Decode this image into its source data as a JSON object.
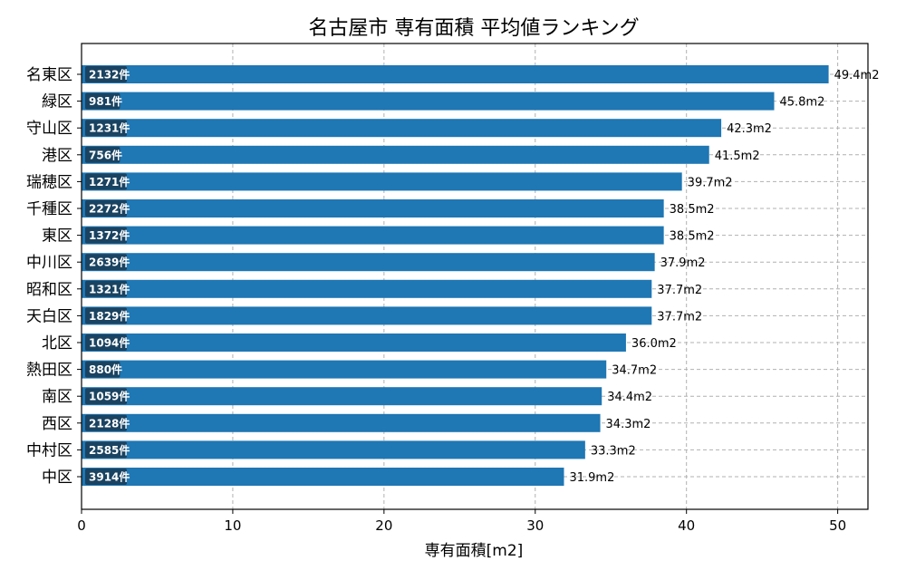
{
  "chart_data": {
    "type": "bar",
    "orientation": "horizontal",
    "title": "名古屋市 専有面積 平均値ランキング",
    "xlabel": "専有面積[m2]",
    "ylabel": "",
    "xlim": [
      0,
      52
    ],
    "xticks": [
      0,
      10,
      20,
      30,
      40,
      50
    ],
    "grid": true,
    "bar_color": "#1f77b4",
    "count_badge_color": "#1a3a52",
    "categories": [
      "名東区",
      "緑区",
      "守山区",
      "港区",
      "瑞穂区",
      "千種区",
      "東区",
      "中川区",
      "昭和区",
      "天白区",
      "北区",
      "熱田区",
      "南区",
      "西区",
      "中村区",
      "中区"
    ],
    "values": [
      49.4,
      45.8,
      42.3,
      41.5,
      39.7,
      38.5,
      38.5,
      37.9,
      37.7,
      37.7,
      36.0,
      34.7,
      34.4,
      34.3,
      33.3,
      31.9
    ],
    "value_labels": [
      "49.4m2",
      "45.8m2",
      "42.3m2",
      "41.5m2",
      "39.7m2",
      "38.5m2",
      "38.5m2",
      "37.9m2",
      "37.7m2",
      "37.7m2",
      "36.0m2",
      "34.7m2",
      "34.4m2",
      "34.3m2",
      "33.3m2",
      "31.9m2"
    ],
    "counts": [
      "2132件",
      "981件",
      "1231件",
      "756件",
      "1271件",
      "2272件",
      "1372件",
      "2639件",
      "1321件",
      "1829件",
      "1094件",
      "880件",
      "1059件",
      "2128件",
      "2585件",
      "3914件"
    ]
  }
}
